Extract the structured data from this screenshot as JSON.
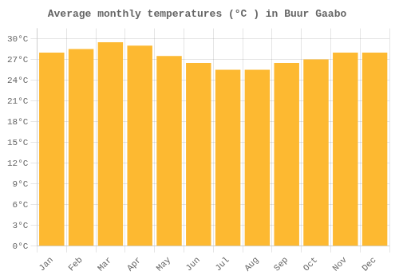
{
  "chart_data": {
    "type": "bar",
    "title": "Average monthly temperatures (°C ) in Buur Gaabo",
    "categories": [
      "Jan",
      "Feb",
      "Mar",
      "Apr",
      "May",
      "Jun",
      "Jul",
      "Aug",
      "Sep",
      "Oct",
      "Nov",
      "Dec"
    ],
    "values": [
      28.0,
      28.5,
      29.5,
      29.0,
      27.5,
      26.5,
      25.5,
      25.5,
      26.5,
      27.0,
      28.0,
      28.0
    ],
    "color": "#FDB931",
    "ylim": [
      0,
      31.5
    ],
    "yticks": [
      {
        "value": 0,
        "label": "0°C"
      },
      {
        "value": 3,
        "label": "3°C"
      },
      {
        "value": 6,
        "label": "6°C"
      },
      {
        "value": 9,
        "label": "9°C"
      },
      {
        "value": 12,
        "label": "12°C"
      },
      {
        "value": 15,
        "label": "15°C"
      },
      {
        "value": 18,
        "label": "18°C"
      },
      {
        "value": 21,
        "label": "21°C"
      },
      {
        "value": 24,
        "label": "24°C"
      },
      {
        "value": 27,
        "label": "27°C"
      },
      {
        "value": 30,
        "label": "30°C"
      }
    ],
    "grid": true
  }
}
